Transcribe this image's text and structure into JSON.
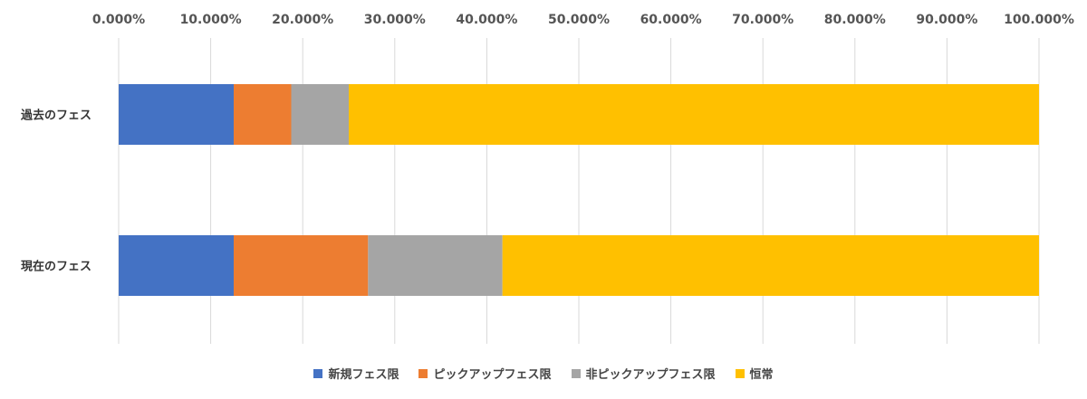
{
  "chart_data": {
    "type": "bar",
    "orientation": "horizontal",
    "stacked": true,
    "percent_stacked": true,
    "categories": [
      "過去のフェス",
      "現在のフェス"
    ],
    "series": [
      {
        "name": "新規フェス限",
        "color": "#4472C4",
        "values": [
          12.5,
          12.5
        ]
      },
      {
        "name": "ピックアップフェス限",
        "color": "#ED7D31",
        "values": [
          6.25,
          14.6
        ]
      },
      {
        "name": "非ピックアップフェス限",
        "color": "#A5A5A5",
        "values": [
          6.25,
          14.6
        ]
      },
      {
        "name": "恒常",
        "color": "#FFC000",
        "values": [
          75.0,
          58.3
        ]
      }
    ],
    "xlim": [
      0,
      100
    ],
    "xticks": [
      "0.000%",
      "10.000%",
      "20.000%",
      "30.000%",
      "40.000%",
      "50.000%",
      "60.000%",
      "70.000%",
      "80.000%",
      "90.000%",
      "100.000%"
    ],
    "x_axis_position": "top",
    "grid": true,
    "legend_position": "bottom"
  }
}
